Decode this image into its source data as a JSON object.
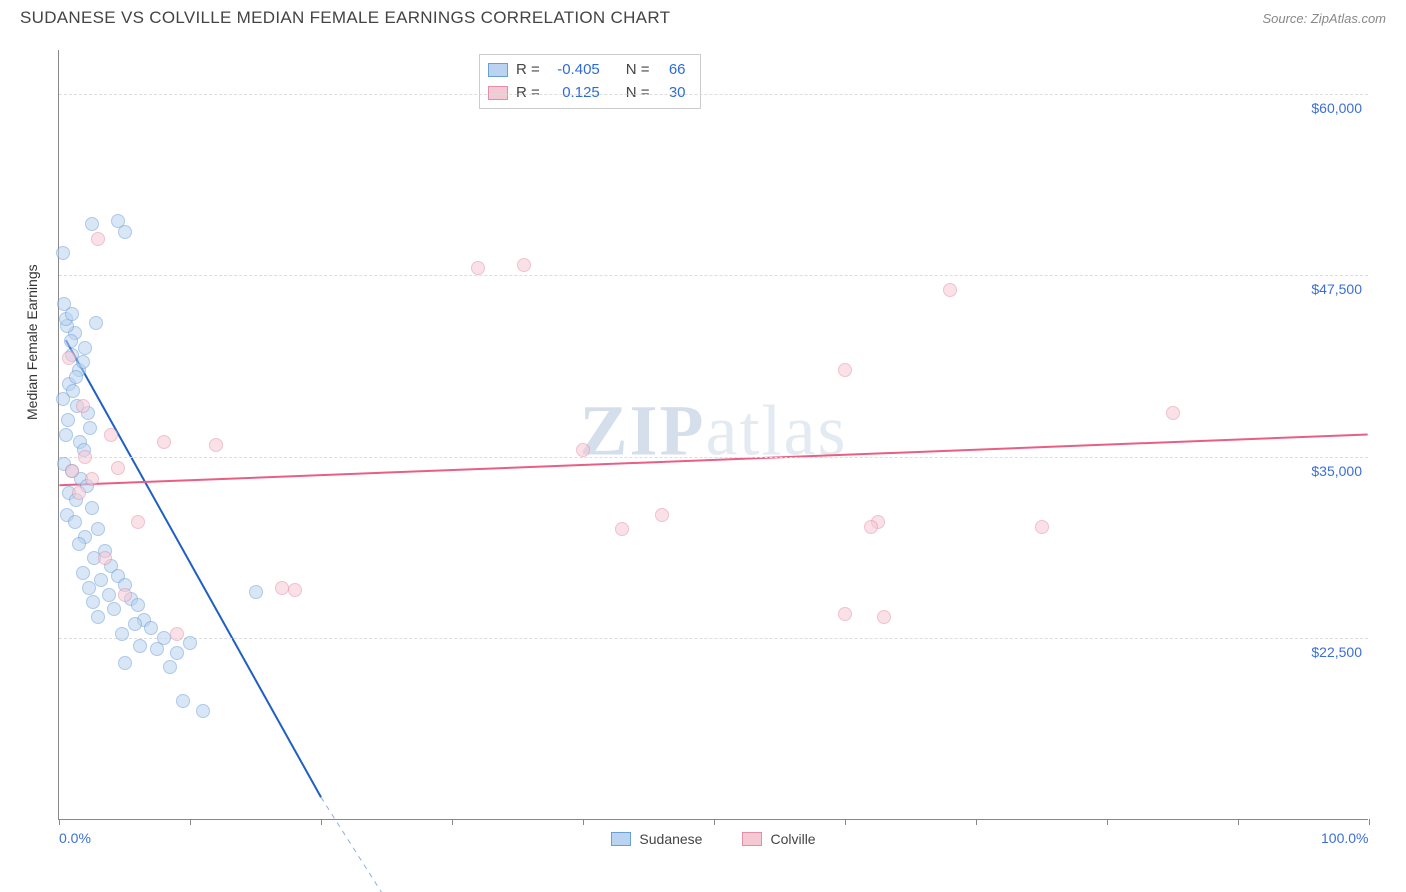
{
  "title": "SUDANESE VS COLVILLE MEDIAN FEMALE EARNINGS CORRELATION CHART",
  "source": "Source: ZipAtlas.com",
  "ylabel": "Median Female Earnings",
  "watermark_zip": "ZIP",
  "watermark_atlas": "atlas",
  "chart": {
    "type": "scatter",
    "xlim": [
      0,
      100
    ],
    "ylim": [
      10000,
      63000
    ],
    "x_ticks": [
      0,
      10,
      20,
      30,
      40,
      50,
      60,
      70,
      80,
      90,
      100
    ],
    "x_tick_labels": {
      "0": "0.0%",
      "100": "100.0%"
    },
    "y_gridlines": [
      22500,
      35000,
      47500,
      60000
    ],
    "y_tick_labels": {
      "22500": "$22,500",
      "35000": "$35,000",
      "47500": "$47,500",
      "60000": "$60,000"
    },
    "background_color": "#ffffff",
    "grid_color": "#dddddd",
    "axis_color": "#888888",
    "label_fontsize": 14,
    "tick_label_color": "#3b6fd6"
  },
  "series": [
    {
      "name": "Sudanese",
      "marker_fill": "#b9d3f0",
      "marker_stroke": "#6a9ed8",
      "line_color": "#1f5fc4",
      "line_width": 2,
      "trend": {
        "x1": 0.5,
        "y1": 43000,
        "x2": 20,
        "y2": 11500,
        "dash_extend_x2": 26,
        "dash_extend_y2": 3000
      },
      "R": "-0.405",
      "N": "66",
      "points": [
        [
          0.4,
          45500
        ],
        [
          1.0,
          42000
        ],
        [
          1.2,
          43500
        ],
        [
          1.5,
          41000
        ],
        [
          0.8,
          40000
        ],
        [
          1.3,
          40500
        ],
        [
          0.6,
          44000
        ],
        [
          2.0,
          42500
        ],
        [
          1.8,
          41500
        ],
        [
          0.9,
          43000
        ],
        [
          1.1,
          39500
        ],
        [
          1.4,
          38500
        ],
        [
          0.7,
          37500
        ],
        [
          2.2,
          38000
        ],
        [
          0.5,
          36500
        ],
        [
          1.6,
          36000
        ],
        [
          0.3,
          39000
        ],
        [
          1.9,
          35500
        ],
        [
          2.4,
          37000
        ],
        [
          0.4,
          34500
        ],
        [
          1.0,
          34000
        ],
        [
          1.7,
          33500
        ],
        [
          2.1,
          33000
        ],
        [
          0.8,
          32500
        ],
        [
          1.3,
          32000
        ],
        [
          2.5,
          31500
        ],
        [
          0.6,
          31000
        ],
        [
          1.2,
          30500
        ],
        [
          3.0,
          30000
        ],
        [
          2.0,
          29500
        ],
        [
          1.5,
          29000
        ],
        [
          3.5,
          28500
        ],
        [
          2.7,
          28000
        ],
        [
          4.0,
          27500
        ],
        [
          1.8,
          27000
        ],
        [
          3.2,
          26500
        ],
        [
          2.3,
          26000
        ],
        [
          4.5,
          26800
        ],
        [
          5.0,
          26200
        ],
        [
          3.8,
          25500
        ],
        [
          2.6,
          25000
        ],
        [
          5.5,
          25200
        ],
        [
          6.0,
          24800
        ],
        [
          4.2,
          24500
        ],
        [
          3.0,
          24000
        ],
        [
          6.5,
          23800
        ],
        [
          5.8,
          23500
        ],
        [
          7.0,
          23200
        ],
        [
          4.8,
          22800
        ],
        [
          8.0,
          22500
        ],
        [
          6.2,
          22000
        ],
        [
          7.5,
          21800
        ],
        [
          9.0,
          21500
        ],
        [
          5.0,
          20800
        ],
        [
          10.0,
          22200
        ],
        [
          8.5,
          20500
        ],
        [
          2.5,
          51000
        ],
        [
          4.5,
          51200
        ],
        [
          5.0,
          50500
        ],
        [
          0.3,
          49000
        ],
        [
          0.5,
          44500
        ],
        [
          1.0,
          44800
        ],
        [
          2.8,
          44200
        ],
        [
          15.0,
          25700
        ],
        [
          9.5,
          18200
        ],
        [
          11.0,
          17500
        ]
      ]
    },
    {
      "name": "Colville",
      "marker_fill": "#f5c9d4",
      "marker_stroke": "#e48fa8",
      "line_color": "#e85f85",
      "line_width": 2,
      "trend": {
        "x1": 0,
        "y1": 33000,
        "x2": 100,
        "y2": 36500
      },
      "R": "0.125",
      "N": "30",
      "points": [
        [
          3.0,
          50000
        ],
        [
          32.0,
          48000
        ],
        [
          35.5,
          48200
        ],
        [
          68.0,
          46500
        ],
        [
          60.0,
          41000
        ],
        [
          85.0,
          38000
        ],
        [
          4.0,
          36500
        ],
        [
          8.0,
          36000
        ],
        [
          12.0,
          35800
        ],
        [
          40.0,
          35500
        ],
        [
          46.0,
          31000
        ],
        [
          43.0,
          30000
        ],
        [
          62.5,
          30500
        ],
        [
          62.0,
          30200
        ],
        [
          60.0,
          24200
        ],
        [
          75.0,
          30200
        ],
        [
          63.0,
          24000
        ],
        [
          1.5,
          32500
        ],
        [
          2.0,
          35000
        ],
        [
          6.0,
          30500
        ],
        [
          3.5,
          28000
        ],
        [
          5.0,
          25500
        ],
        [
          9.0,
          22800
        ],
        [
          17.0,
          26000
        ],
        [
          18.0,
          25800
        ],
        [
          1.0,
          34000
        ],
        [
          2.5,
          33500
        ],
        [
          1.8,
          38500
        ],
        [
          0.8,
          41800
        ],
        [
          4.5,
          34200
        ]
      ]
    }
  ],
  "stats_labels": {
    "R": "R =",
    "N": "N ="
  },
  "legend": [
    {
      "label": "Sudanese",
      "fill": "#b9d3f0",
      "stroke": "#6a9ed8"
    },
    {
      "label": "Colville",
      "fill": "#f5c9d4",
      "stroke": "#e48fa8"
    }
  ]
}
